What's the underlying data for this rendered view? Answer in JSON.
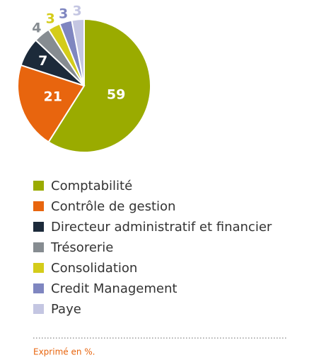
{
  "chart_data": {
    "type": "pie",
    "categories": [
      "Comptabilité",
      "Contrôle de gestion",
      "Directeur administratif et financier",
      "Trésorerie",
      "Consolidation",
      "Credit Management",
      "Paye"
    ],
    "values": [
      59,
      21,
      7,
      4,
      3,
      3,
      3
    ],
    "colors": [
      "#9aab00",
      "#e8650e",
      "#1c2a3a",
      "#868c91",
      "#d4cc1a",
      "#7f86c0",
      "#c4c6e2"
    ],
    "legend": "bottom",
    "note": "Exprimé en %."
  }
}
